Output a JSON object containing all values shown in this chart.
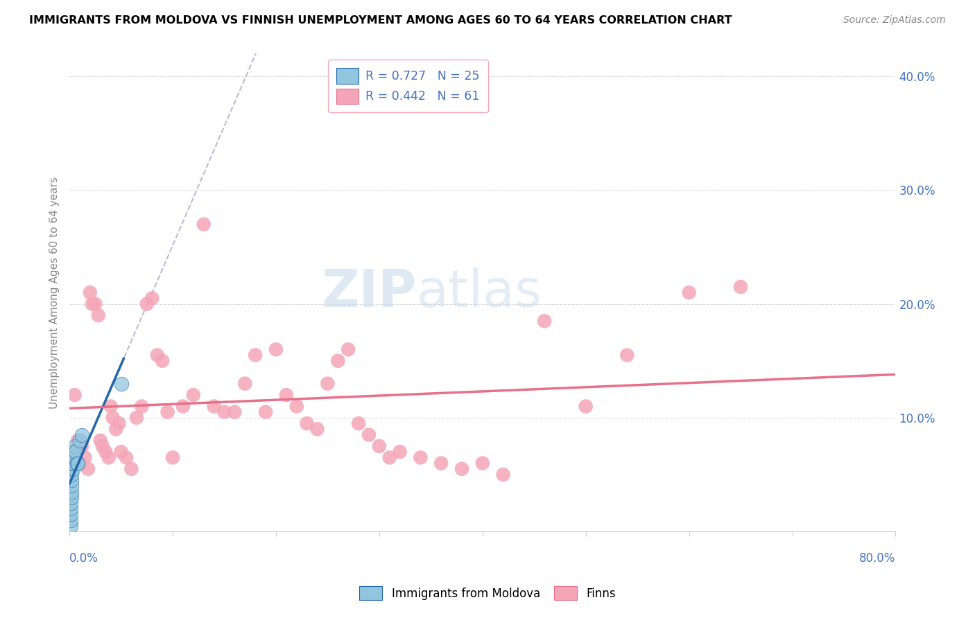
{
  "title": "IMMIGRANTS FROM MOLDOVA VS FINNISH UNEMPLOYMENT AMONG AGES 60 TO 64 YEARS CORRELATION CHART",
  "source": "Source: ZipAtlas.com",
  "ylabel": "Unemployment Among Ages 60 to 64 years",
  "xlim": [
    0.0,
    0.8
  ],
  "ylim": [
    0.0,
    0.42
  ],
  "watermark_zip": "ZIP",
  "watermark_atlas": "atlas",
  "moldova_color": "#92C5DE",
  "finns_color": "#F4A6B8",
  "moldova_line_color": "#2166AC",
  "finns_line_color": "#E8708A",
  "background_color": "#FFFFFF",
  "grid_color": "#DDDDDD",
  "axis_label_color": "#4472C4",
  "ylabel_color": "#888888",
  "moldova_x": [
    0.001,
    0.001,
    0.001,
    0.001,
    0.001,
    0.002,
    0.002,
    0.002,
    0.002,
    0.002,
    0.003,
    0.003,
    0.003,
    0.003,
    0.004,
    0.004,
    0.004,
    0.005,
    0.005,
    0.006,
    0.007,
    0.008,
    0.01,
    0.012,
    0.05
  ],
  "moldova_y": [
    0.005,
    0.01,
    0.015,
    0.02,
    0.025,
    0.03,
    0.035,
    0.04,
    0.045,
    0.05,
    0.055,
    0.06,
    0.065,
    0.07,
    0.06,
    0.065,
    0.07,
    0.065,
    0.075,
    0.07,
    0.06,
    0.06,
    0.08,
    0.085,
    0.13
  ],
  "finns_x": [
    0.005,
    0.008,
    0.01,
    0.012,
    0.015,
    0.018,
    0.02,
    0.022,
    0.025,
    0.028,
    0.03,
    0.032,
    0.035,
    0.038,
    0.04,
    0.042,
    0.045,
    0.048,
    0.05,
    0.055,
    0.06,
    0.065,
    0.07,
    0.075,
    0.08,
    0.085,
    0.09,
    0.095,
    0.1,
    0.11,
    0.12,
    0.13,
    0.14,
    0.15,
    0.16,
    0.17,
    0.18,
    0.19,
    0.2,
    0.21,
    0.22,
    0.23,
    0.24,
    0.25,
    0.26,
    0.27,
    0.28,
    0.29,
    0.3,
    0.31,
    0.32,
    0.34,
    0.36,
    0.38,
    0.4,
    0.42,
    0.46,
    0.5,
    0.54,
    0.6,
    0.65
  ],
  "finns_y": [
    0.12,
    0.08,
    0.06,
    0.075,
    0.065,
    0.055,
    0.21,
    0.2,
    0.2,
    0.19,
    0.08,
    0.075,
    0.07,
    0.065,
    0.11,
    0.1,
    0.09,
    0.095,
    0.07,
    0.065,
    0.055,
    0.1,
    0.11,
    0.2,
    0.205,
    0.155,
    0.15,
    0.105,
    0.065,
    0.11,
    0.12,
    0.27,
    0.11,
    0.105,
    0.105,
    0.13,
    0.155,
    0.105,
    0.16,
    0.12,
    0.11,
    0.095,
    0.09,
    0.13,
    0.15,
    0.16,
    0.095,
    0.085,
    0.075,
    0.065,
    0.07,
    0.065,
    0.06,
    0.055,
    0.06,
    0.05,
    0.185,
    0.11,
    0.155,
    0.21,
    0.215
  ],
  "r_moldova": 0.727,
  "n_moldova": 25,
  "r_finns": 0.442,
  "n_finns": 61
}
